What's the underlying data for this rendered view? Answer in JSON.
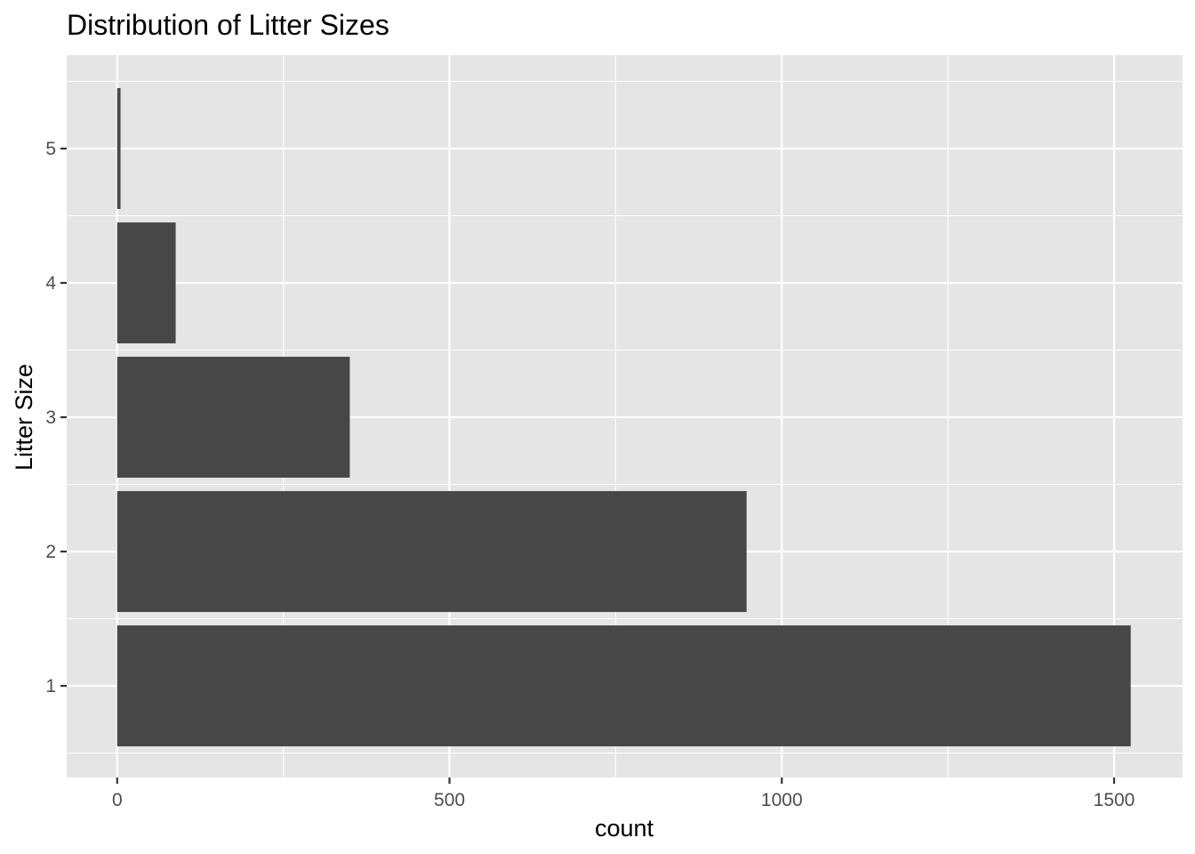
{
  "chart_data": {
    "type": "bar",
    "orientation": "horizontal",
    "title": "Distribution of Litter Sizes",
    "xlabel": "count",
    "ylabel": "Litter Size",
    "categories": [
      "1",
      "2",
      "3",
      "4",
      "5"
    ],
    "values": [
      1525,
      947,
      350,
      88,
      5
    ],
    "xlim": [
      -76,
      1603
    ],
    "xticks": [
      0,
      500,
      1000,
      1500
    ],
    "xtick_labels": [
      "0",
      "500",
      "1000",
      "1500"
    ],
    "grid": true,
    "legend": "none",
    "colors": {
      "panel_background": "#e5e5e5",
      "grid_line": "#ffffff",
      "bar_fill": "#474747",
      "tick_text": "#4d4d4d",
      "tick_mark": "#333333"
    }
  }
}
